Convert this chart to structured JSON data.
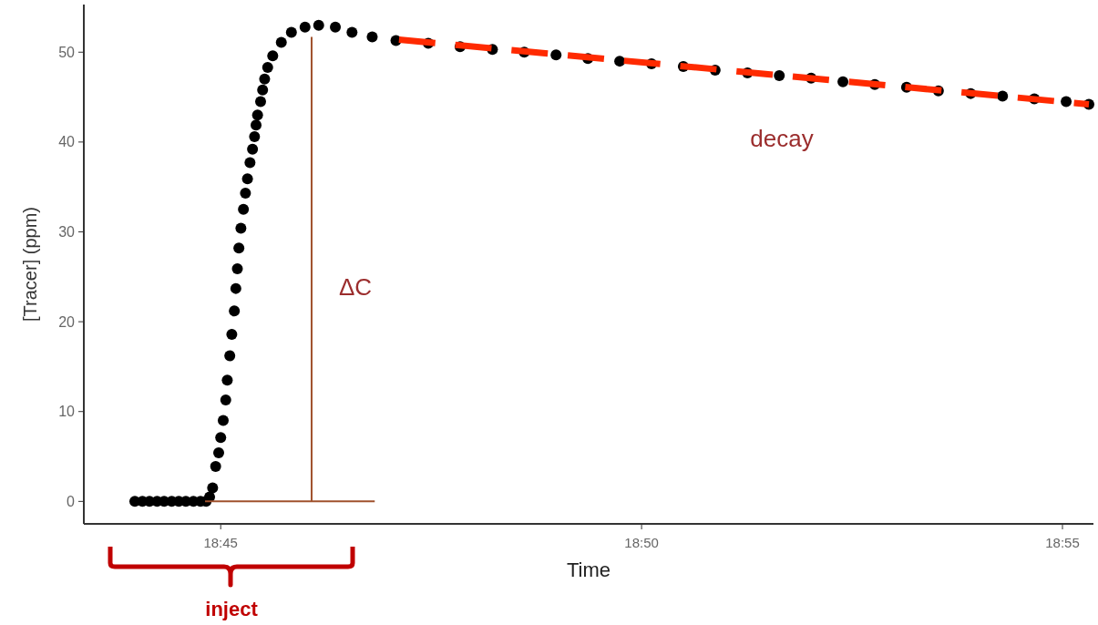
{
  "chart_data": {
    "type": "scatter",
    "xlabel": "Time",
    "ylabel": "[Tracer] (ppm)",
    "xlim": [
      18.7229,
      18.9228
    ],
    "ylim": [
      -2.5,
      55.3
    ],
    "xticks": [
      {
        "value": 18.75,
        "label": "18:45"
      },
      {
        "value": 18.833333,
        "label": "18:50"
      },
      {
        "value": 18.916667,
        "label": "18:55"
      }
    ],
    "yticks": [
      0,
      10,
      20,
      30,
      40,
      50
    ],
    "series": [
      {
        "color": "#000000",
        "marker": "circle",
        "x": [
          18.733,
          18.7345,
          18.7359,
          18.7374,
          18.7388,
          18.7403,
          18.7417,
          18.7431,
          18.7446,
          18.746,
          18.7471,
          18.7478,
          18.7484,
          18.749,
          18.7496,
          18.75,
          18.7505,
          18.751,
          18.7513,
          18.7518,
          18.7522,
          18.7527,
          18.753,
          18.7533,
          18.7536,
          18.754,
          18.7545,
          18.7549,
          18.7553,
          18.7558,
          18.7563,
          18.7567,
          18.757,
          18.7573,
          18.7579,
          18.7583,
          18.7587,
          18.7593,
          18.7603,
          18.762,
          18.764,
          18.7667,
          18.7694,
          18.7727,
          18.776,
          18.78,
          18.7847,
          18.7911,
          18.7974,
          18.8038,
          18.8101,
          18.8164,
          18.8227,
          18.829,
          18.8353,
          18.8416,
          18.8479,
          18.8543,
          18.8606,
          18.8669,
          18.8732,
          18.8795,
          18.8858,
          18.8921,
          18.8985,
          18.9048,
          18.9111,
          18.9174,
          18.9219
        ],
        "values": [
          0,
          0,
          0,
          0,
          0,
          0,
          0,
          0,
          0,
          0,
          0,
          0.5,
          1.5,
          3.9,
          5.4,
          7.1,
          9.0,
          11.3,
          13.5,
          16.2,
          18.6,
          21.2,
          23.7,
          25.9,
          28.2,
          30.4,
          32.5,
          34.3,
          35.9,
          37.7,
          39.2,
          40.6,
          41.9,
          43.0,
          44.5,
          45.8,
          47.0,
          48.3,
          49.6,
          51.1,
          52.2,
          52.8,
          53.0,
          52.8,
          52.2,
          51.7,
          51.3,
          51.0,
          50.6,
          50.3,
          50.0,
          49.7,
          49.3,
          49.0,
          48.7,
          48.4,
          48.0,
          47.7,
          47.4,
          47.1,
          46.7,
          46.4,
          46.1,
          45.7,
          45.4,
          45.1,
          44.8,
          44.5,
          44.2
        ]
      },
      {
        "type": "line",
        "color": "#ff2a00",
        "line_style": "dashed",
        "x": [
          18.7853,
          18.9219
        ],
        "values": [
          51.4,
          44.2
        ]
      },
      {
        "type": "line",
        "color": "#a0522d",
        "line_style": "solid",
        "x": [
          18.768,
          18.768
        ],
        "values": [
          0,
          51.7
        ]
      },
      {
        "type": "line",
        "color": "#a0522d",
        "line_style": "solid",
        "x": [
          18.7469,
          18.7805
        ],
        "values": [
          0,
          0
        ]
      }
    ],
    "annotations": [
      "ΔC",
      "decay",
      "inject"
    ]
  }
}
